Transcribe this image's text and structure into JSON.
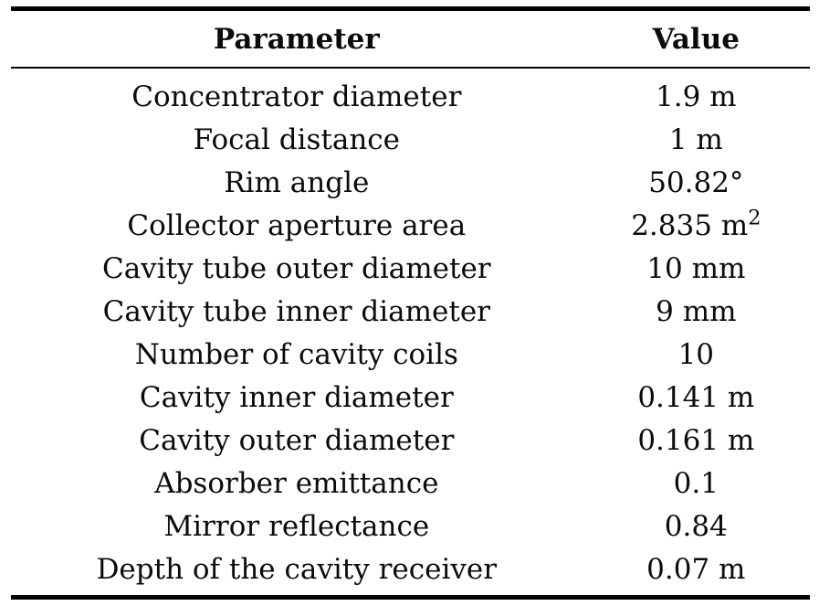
{
  "table": {
    "columns": [
      {
        "label": "Parameter"
      },
      {
        "label": "Value"
      }
    ],
    "rows": [
      {
        "param": "Concentrator diameter",
        "value": "1.9 m"
      },
      {
        "param": "Focal distance",
        "value": "1 m"
      },
      {
        "param": "Rim angle",
        "value": "50.82°"
      },
      {
        "param": "Collector aperture area",
        "value": "2.835 m",
        "sup": "2"
      },
      {
        "param": "Cavity tube outer diameter",
        "value": "10 mm"
      },
      {
        "param": "Cavity tube inner diameter",
        "value": "9 mm"
      },
      {
        "param": "Number of cavity coils",
        "value": "10"
      },
      {
        "param": "Cavity inner diameter",
        "value": "0.141 m"
      },
      {
        "param": "Cavity outer diameter",
        "value": "0.161 m"
      },
      {
        "param": "Absorber emittance",
        "value": "0.1"
      },
      {
        "param": "Mirror reflectance",
        "value": "0.84"
      },
      {
        "param": "Depth of the cavity receiver",
        "value": "0.07 m"
      }
    ],
    "colors": {
      "background": "#ffffff",
      "text": "#0b0b0b",
      "rule": "#000000"
    }
  }
}
